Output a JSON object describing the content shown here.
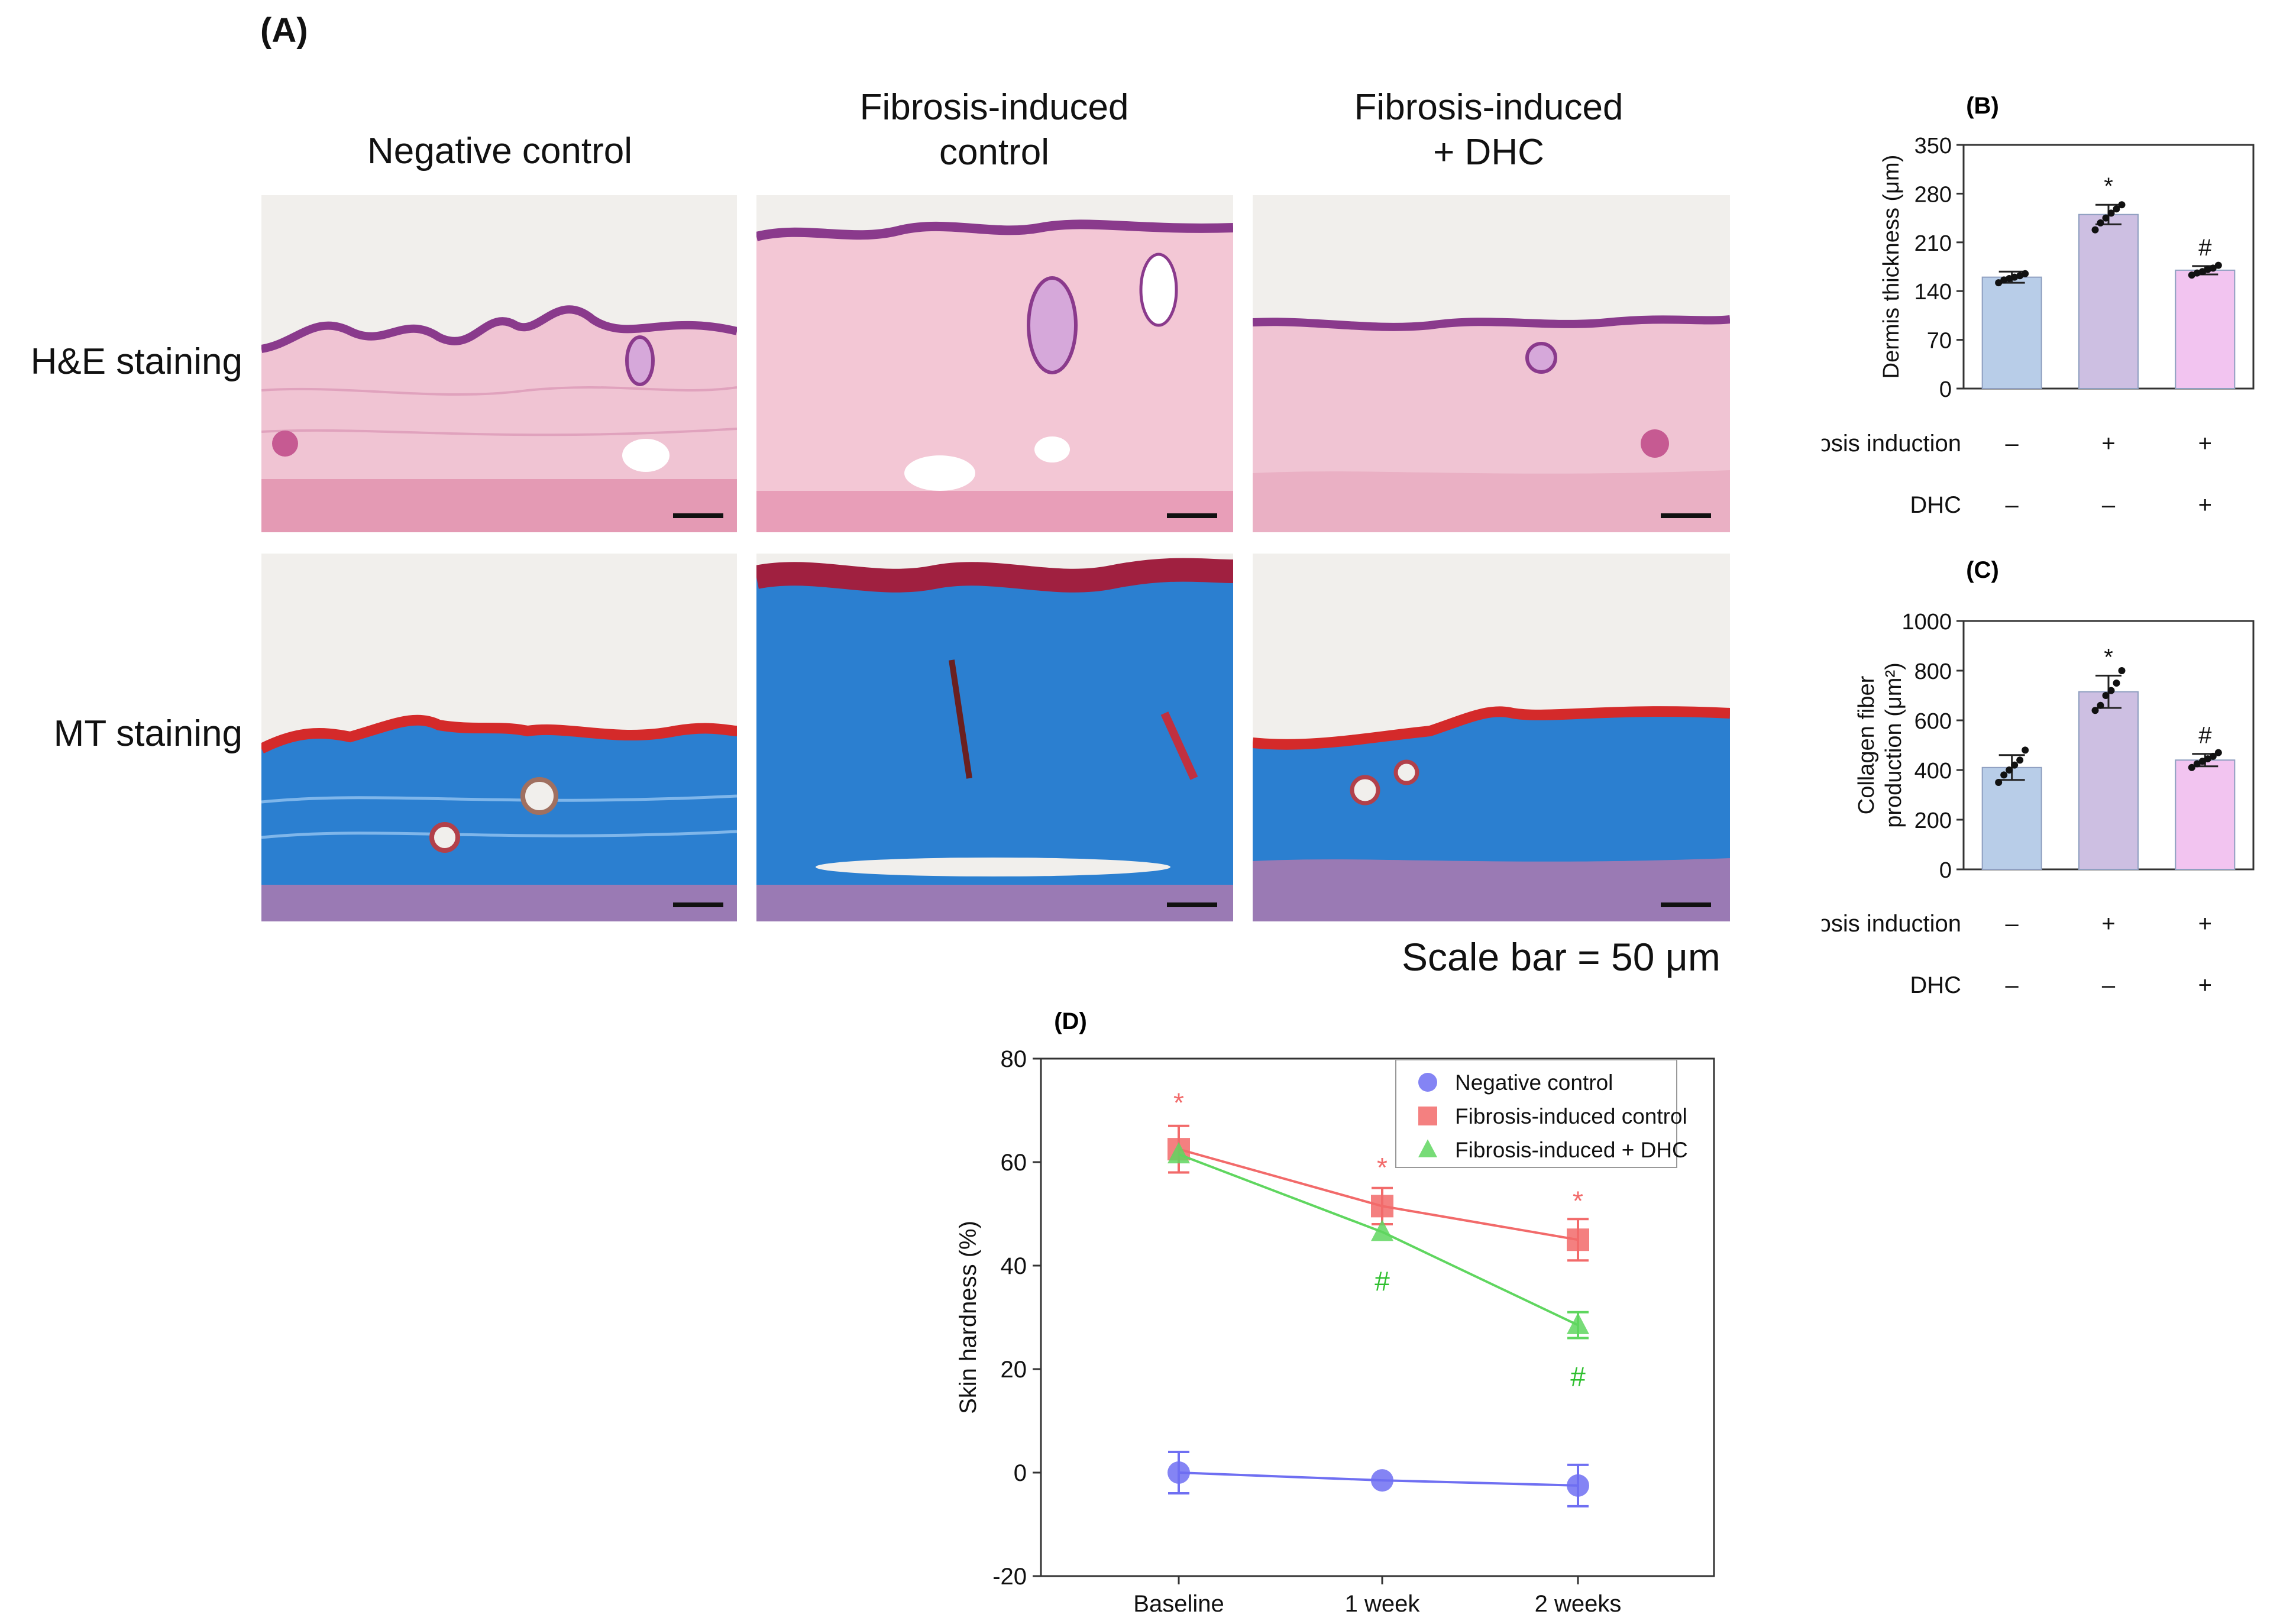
{
  "panel_a": {
    "label": "(A)",
    "columns": [
      "Negative control",
      "Fibrosis-induced control",
      "Fibrosis-induced + DHC"
    ],
    "column_lines": [
      [
        "Negative control"
      ],
      [
        "Fibrosis-induced",
        "control"
      ],
      [
        "Fibrosis-induced",
        "+ DHC"
      ]
    ],
    "rows": [
      "H&E staining",
      "MT staining"
    ],
    "scale_bar_text": "Scale bar = 50 μm",
    "colors": {
      "he_stroma": "#f0bfd0",
      "he_epidermis": "#8a3a8c",
      "mt_collagen": "#2b7fd0",
      "mt_keratin": "#d42a2a",
      "mt_muscle": "#9a7ab4"
    }
  },
  "chart_data": [
    {
      "id": "B",
      "label": "(B)",
      "type": "bar",
      "ylabel": "Dermis thickness (μm)",
      "ylim": [
        0,
        350
      ],
      "yticks": [
        0,
        70,
        140,
        210,
        280,
        350
      ],
      "categories": [
        "Negative control",
        "Fibrosis-induced control",
        "Fibrosis-induced + DHC"
      ],
      "values": [
        160,
        250,
        170
      ],
      "errors": [
        8,
        14,
        6
      ],
      "points": [
        [
          152,
          156,
          158,
          160,
          162,
          165
        ],
        [
          228,
          238,
          245,
          252,
          258,
          264
        ],
        [
          163,
          166,
          168,
          171,
          173,
          177
        ]
      ],
      "colors": [
        "#b8cde8",
        "#cdbfe2",
        "#f2c4f0"
      ],
      "annotations": [
        "",
        "*",
        "#"
      ],
      "conditions": [
        {
          "name": "Fibrosis induction",
          "values": [
            "–",
            "+",
            "+"
          ]
        },
        {
          "name": "DHC",
          "values": [
            "–",
            "–",
            "+"
          ]
        }
      ]
    },
    {
      "id": "C",
      "label": "(C)",
      "type": "bar",
      "ylabel": "Collagen fiber production (μm²)",
      "ylabel_lines": [
        "Collagen fiber",
        "production (μm²)"
      ],
      "ylim": [
        0,
        1000
      ],
      "yticks": [
        0,
        200,
        400,
        600,
        800,
        1000
      ],
      "categories": [
        "Negative control",
        "Fibrosis-induced control",
        "Fibrosis-induced + DHC"
      ],
      "values": [
        410,
        715,
        440
      ],
      "errors": [
        50,
        65,
        25
      ],
      "points": [
        [
          350,
          380,
          400,
          420,
          440,
          480
        ],
        [
          640,
          660,
          700,
          720,
          750,
          800
        ],
        [
          410,
          425,
          435,
          445,
          455,
          470
        ]
      ],
      "colors": [
        "#b8cde8",
        "#cdbfe2",
        "#f2c4f0"
      ],
      "annotations": [
        "",
        "*",
        "#"
      ],
      "conditions": [
        {
          "name": "Fibrosis induction",
          "values": [
            "–",
            "+",
            "+"
          ]
        },
        {
          "name": "DHC",
          "values": [
            "–",
            "–",
            "+"
          ]
        }
      ]
    },
    {
      "id": "D",
      "label": "(D)",
      "type": "line",
      "ylabel": "Skin hardness (%)",
      "xlabel": "",
      "x": [
        "Baseline",
        "1 week",
        "2 weeks"
      ],
      "ylim": [
        -20,
        80
      ],
      "yticks": [
        -20,
        0,
        20,
        40,
        60,
        80
      ],
      "legend_position": "top-right",
      "series": [
        {
          "name": "Negative control",
          "values": [
            0,
            -1.5,
            -2.5
          ],
          "errors": [
            4,
            0,
            4
          ],
          "color": "#6f6ff2",
          "marker": "circle"
        },
        {
          "name": "Fibrosis-induced control",
          "values": [
            62.5,
            51.5,
            45
          ],
          "errors": [
            4.5,
            3.5,
            4
          ],
          "color": "#f26a6a",
          "marker": "square"
        },
        {
          "name": "Fibrosis-induced + DHC",
          "values": [
            61.5,
            46.5,
            28.5
          ],
          "errors": [
            0,
            0,
            2.5
          ],
          "color": "#5fd65f",
          "marker": "triangle"
        }
      ],
      "annotations": [
        {
          "x": "Baseline",
          "text": "*",
          "value": 71.5,
          "color": "#f26a6a"
        },
        {
          "x": "1 week",
          "text": "*",
          "value": 59,
          "color": "#f26a6a"
        },
        {
          "x": "2 weeks",
          "text": "*",
          "value": 52.5,
          "color": "#f26a6a"
        },
        {
          "x": "1 week",
          "text": "#",
          "value": 37,
          "color": "#2fbf2f"
        },
        {
          "x": "2 weeks",
          "text": "#",
          "value": 18.5,
          "color": "#2fbf2f"
        }
      ]
    }
  ]
}
